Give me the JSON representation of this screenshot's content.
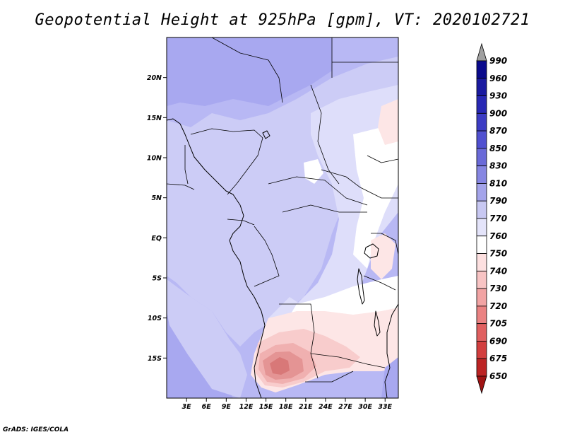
{
  "title": "Geopotential Height at 925hPa [gpm], VT: 2020102721",
  "credit": "GrADS: IGES/COLA",
  "map": {
    "extent": {
      "lon_min": 0,
      "lon_max": 35,
      "lat_min": -20,
      "lat_max": 25
    },
    "lat_ticks": [
      {
        "lat": 20,
        "label": "20N"
      },
      {
        "lat": 15,
        "label": "15N"
      },
      {
        "lat": 10,
        "label": "10N"
      },
      {
        "lat": 5,
        "label": "5N"
      },
      {
        "lat": 0,
        "label": "EQ"
      },
      {
        "lat": -5,
        "label": "5S"
      },
      {
        "lat": -10,
        "label": "10S"
      },
      {
        "lat": -15,
        "label": "15S"
      }
    ],
    "lon_ticks": [
      {
        "lon": 3,
        "label": "3E"
      },
      {
        "lon": 6,
        "label": "6E"
      },
      {
        "lon": 9,
        "label": "9E"
      },
      {
        "lon": 12,
        "label": "12E"
      },
      {
        "lon": 15,
        "label": "15E"
      },
      {
        "lon": 18,
        "label": "18E"
      },
      {
        "lon": 21,
        "label": "21E"
      },
      {
        "lon": 24,
        "label": "24E"
      },
      {
        "lon": 27,
        "label": "27E"
      },
      {
        "lon": 30,
        "label": "30E"
      },
      {
        "lon": 33,
        "label": "33E"
      }
    ]
  },
  "colorbar": {
    "labels": [
      "990",
      "960",
      "930",
      "900",
      "870",
      "850",
      "830",
      "810",
      "790",
      "770",
      "760",
      "750",
      "740",
      "730",
      "720",
      "705",
      "690",
      "675",
      "650"
    ],
    "colors": [
      "#a0a0a0",
      "#0a0a8c",
      "#1a1aa0",
      "#2828b4",
      "#3c3cc4",
      "#5050d0",
      "#6a6ad8",
      "#8686e2",
      "#a4a4ea",
      "#c8c8f2",
      "#e4e4fa",
      "#ffffff",
      "#fde0e0",
      "#f8c4c4",
      "#f2a4a4",
      "#ea8282",
      "#e06060",
      "#d23e3e",
      "#bc2424",
      "#a01414"
    ]
  },
  "field_colors": {
    "h830": "#a8a8f0",
    "h810": "#b8b8f4",
    "h790": "#ccccf6",
    "h770": "#dedefa",
    "h760": "#ffffff",
    "h750": "#fde6e6",
    "h740": "#f8cccc",
    "h730": "#f0b0b0",
    "h720": "#e49494",
    "h705": "#d87878"
  }
}
